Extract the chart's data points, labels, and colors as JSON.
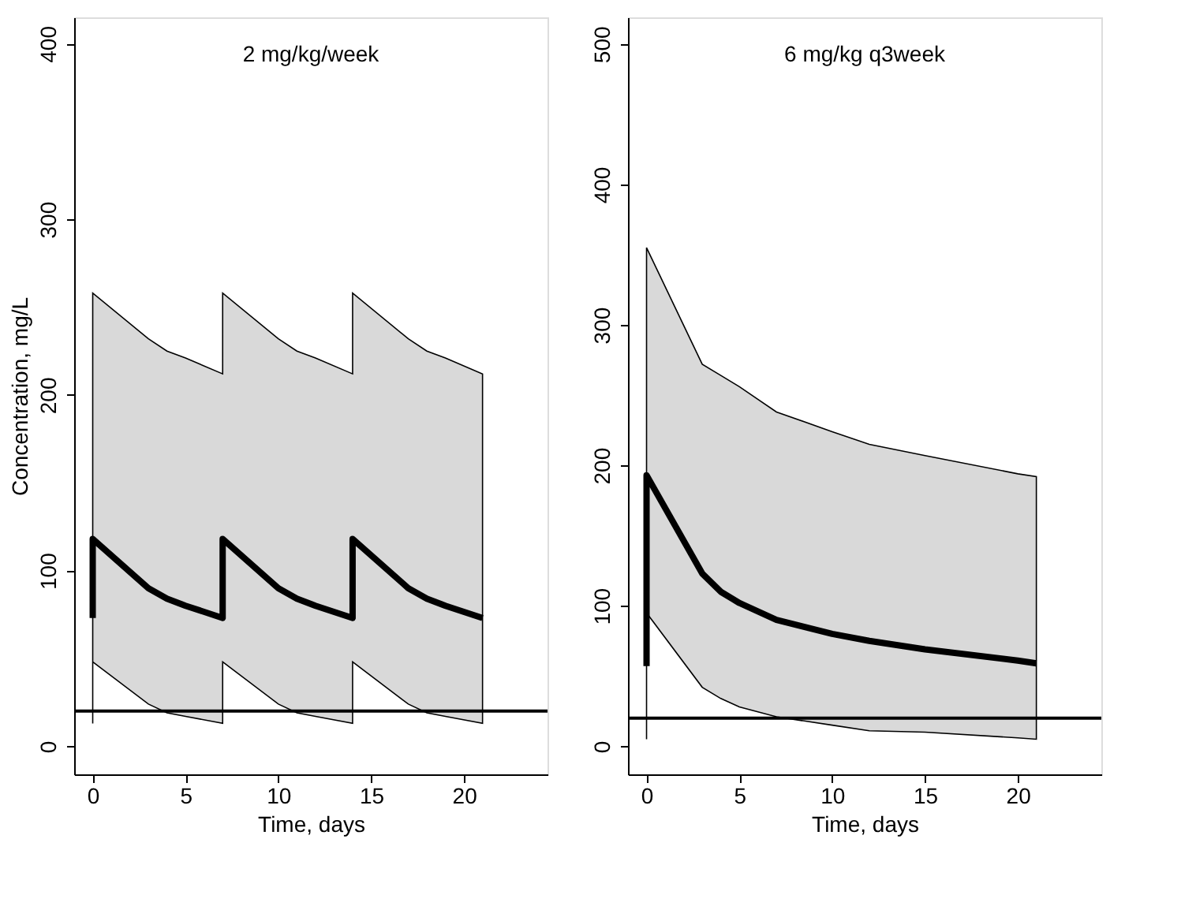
{
  "chart_data": [
    {
      "type": "line",
      "title": "2 mg/kg/week",
      "xlabel": "Time, days",
      "ylabel": "Concentration, mg/L",
      "x": [
        0,
        0,
        3,
        4,
        5,
        7,
        7,
        10,
        11,
        12,
        14,
        14,
        17,
        18,
        19,
        21
      ],
      "series": [
        {
          "color": "#000000",
          "values": [
            73,
            118,
            90,
            84,
            80,
            73,
            118,
            90,
            84,
            80,
            73,
            118,
            90,
            84,
            80,
            73
          ],
          "lower": [
            13,
            48,
            24,
            19,
            17,
            13,
            48,
            24,
            19,
            17,
            13,
            48,
            24,
            19,
            17,
            13
          ],
          "upper": [
            212,
            258,
            232,
            225,
            221,
            212,
            258,
            232,
            225,
            221,
            212,
            258,
            232,
            225,
            221,
            212
          ]
        }
      ],
      "xlim": [
        -1,
        24.5
      ],
      "xticks": [
        0,
        5,
        10,
        15,
        20
      ],
      "ylim": [
        -16,
        415
      ],
      "yticks": [
        0,
        100,
        200,
        300,
        400
      ],
      "grid": false,
      "ref_lines": [
        {
          "axis": "y",
          "value": 20,
          "color": "#000000"
        }
      ]
    },
    {
      "type": "line",
      "title": "6 mg/kg q3week",
      "xlabel": "Time, days",
      "x": [
        0,
        0,
        3,
        4,
        5,
        7,
        10,
        12,
        15,
        20,
        21
      ],
      "series": [
        {
          "color": "#000000",
          "values": [
            57,
            193,
            123,
            110,
            102,
            90,
            80,
            75,
            69,
            61,
            59
          ],
          "lower": [
            5,
            95,
            42,
            34,
            28,
            21,
            15,
            11,
            10,
            6,
            5
          ],
          "upper": [
            355,
            355,
            272,
            264,
            256,
            238,
            224,
            215,
            207,
            194,
            192
          ]
        }
      ],
      "xlim": [
        -1,
        24.5
      ],
      "xticks": [
        0,
        5,
        10,
        15,
        20
      ],
      "ylim": [
        -20,
        519
      ],
      "yticks": [
        0,
        100,
        200,
        300,
        400,
        500
      ],
      "grid": false,
      "ref_lines": [
        {
          "axis": "y",
          "value": 20,
          "color": "#000000"
        }
      ]
    }
  ]
}
